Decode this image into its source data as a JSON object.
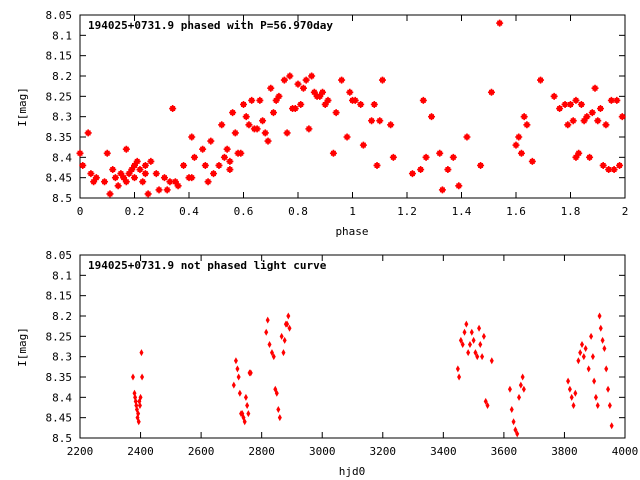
{
  "chart_data": [
    {
      "type": "scatter",
      "title": "194025+0731.9 phased with P=56.970day",
      "xlabel": "phase",
      "ylabel": "I[mag]",
      "xlim": [
        0,
        2
      ],
      "ylim": [
        8.05,
        8.5
      ],
      "y_inverted": true,
      "x_ticks": [
        "0",
        "0.2",
        "0.4",
        "0.6",
        "0.8",
        "1",
        "1.2",
        "1.4",
        "1.6",
        "1.8",
        "2"
      ],
      "x_tick_values": [
        0,
        0.2,
        0.4,
        0.6,
        0.8,
        1.0,
        1.2,
        1.4,
        1.6,
        1.8,
        2.0
      ],
      "y_ticks": [
        "8.05",
        "8.1",
        "8.15",
        "8.2",
        "8.25",
        "8.3",
        "8.35",
        "8.4",
        "8.45",
        "8.5"
      ],
      "y_tick_values": [
        8.05,
        8.1,
        8.15,
        8.2,
        8.25,
        8.3,
        8.35,
        8.4,
        8.45,
        8.5
      ],
      "marker_color": "#ff0000",
      "grid": false,
      "series": [
        {
          "points": [
            [
              0.0,
              8.39
            ],
            [
              0.01,
              8.42
            ],
            [
              0.03,
              8.34
            ],
            [
              0.04,
              8.44
            ],
            [
              0.05,
              8.46
            ],
            [
              0.06,
              8.45
            ],
            [
              0.09,
              8.46
            ],
            [
              0.1,
              8.39
            ],
            [
              0.11,
              8.49
            ],
            [
              0.12,
              8.43
            ],
            [
              0.13,
              8.45
            ],
            [
              0.14,
              8.47
            ],
            [
              0.15,
              8.44
            ],
            [
              0.16,
              8.45
            ],
            [
              0.17,
              8.46
            ],
            [
              0.17,
              8.38
            ],
            [
              0.18,
              8.44
            ],
            [
              0.19,
              8.43
            ],
            [
              0.2,
              8.42
            ],
            [
              0.2,
              8.45
            ],
            [
              0.21,
              8.41
            ],
            [
              0.22,
              8.43
            ],
            [
              0.23,
              8.46
            ],
            [
              0.24,
              8.44
            ],
            [
              0.24,
              8.42
            ],
            [
              0.25,
              8.49
            ],
            [
              0.26,
              8.41
            ],
            [
              0.28,
              8.44
            ],
            [
              0.29,
              8.48
            ],
            [
              0.31,
              8.45
            ],
            [
              0.32,
              8.48
            ],
            [
              0.33,
              8.46
            ],
            [
              0.34,
              8.28
            ],
            [
              0.35,
              8.46
            ],
            [
              0.36,
              8.47
            ],
            [
              0.38,
              8.42
            ],
            [
              0.4,
              8.45
            ],
            [
              0.41,
              8.45
            ],
            [
              0.41,
              8.35
            ],
            [
              0.42,
              8.4
            ],
            [
              0.45,
              8.38
            ],
            [
              0.46,
              8.42
            ],
            [
              0.47,
              8.46
            ],
            [
              0.48,
              8.36
            ],
            [
              0.49,
              8.44
            ],
            [
              0.51,
              8.42
            ],
            [
              0.52,
              8.32
            ],
            [
              0.53,
              8.4
            ],
            [
              0.54,
              8.38
            ],
            [
              0.55,
              8.41
            ],
            [
              0.55,
              8.43
            ],
            [
              0.56,
              8.29
            ],
            [
              0.57,
              8.34
            ],
            [
              0.58,
              8.39
            ],
            [
              0.59,
              8.39
            ],
            [
              0.6,
              8.27
            ],
            [
              0.61,
              8.3
            ],
            [
              0.62,
              8.32
            ],
            [
              0.63,
              8.26
            ],
            [
              0.64,
              8.33
            ],
            [
              0.65,
              8.33
            ],
            [
              0.66,
              8.26
            ],
            [
              0.67,
              8.31
            ],
            [
              0.68,
              8.34
            ],
            [
              0.69,
              8.36
            ],
            [
              0.7,
              8.23
            ],
            [
              0.71,
              8.29
            ],
            [
              0.72,
              8.26
            ],
            [
              0.73,
              8.25
            ],
            [
              0.75,
              8.21
            ],
            [
              0.76,
              8.34
            ],
            [
              0.77,
              8.2
            ],
            [
              0.78,
              8.28
            ],
            [
              0.79,
              8.28
            ],
            [
              0.8,
              8.22
            ],
            [
              0.81,
              8.27
            ],
            [
              0.82,
              8.23
            ],
            [
              0.83,
              8.21
            ],
            [
              0.84,
              8.33
            ],
            [
              0.85,
              8.2
            ],
            [
              0.86,
              8.24
            ],
            [
              0.87,
              8.25
            ],
            [
              0.88,
              8.25
            ],
            [
              0.89,
              8.24
            ],
            [
              0.9,
              8.27
            ],
            [
              0.91,
              8.26
            ],
            [
              0.93,
              8.39
            ],
            [
              0.94,
              8.29
            ],
            [
              0.96,
              8.21
            ],
            [
              0.98,
              8.35
            ],
            [
              0.99,
              8.24
            ],
            [
              1.0,
              8.26
            ],
            [
              1.01,
              8.26
            ],
            [
              1.03,
              8.27
            ],
            [
              1.04,
              8.37
            ],
            [
              1.07,
              8.31
            ],
            [
              1.08,
              8.27
            ],
            [
              1.09,
              8.42
            ],
            [
              1.1,
              8.31
            ],
            [
              1.11,
              8.21
            ],
            [
              1.14,
              8.32
            ],
            [
              1.15,
              8.4
            ],
            [
              1.22,
              8.44
            ],
            [
              1.25,
              8.43
            ],
            [
              1.26,
              8.26
            ],
            [
              1.27,
              8.4
            ],
            [
              1.29,
              8.3
            ],
            [
              1.32,
              8.39
            ],
            [
              1.33,
              8.48
            ],
            [
              1.35,
              8.43
            ],
            [
              1.37,
              8.4
            ],
            [
              1.39,
              8.47
            ],
            [
              1.42,
              8.35
            ],
            [
              1.47,
              8.42
            ],
            [
              1.51,
              8.24
            ],
            [
              1.54,
              8.07
            ],
            [
              1.6,
              8.37
            ],
            [
              1.61,
              8.35
            ],
            [
              1.62,
              8.39
            ],
            [
              1.63,
              8.3
            ],
            [
              1.64,
              8.32
            ],
            [
              1.66,
              8.41
            ],
            [
              1.69,
              8.21
            ],
            [
              1.74,
              8.25
            ],
            [
              1.76,
              8.28
            ],
            [
              1.78,
              8.27
            ],
            [
              1.79,
              8.32
            ],
            [
              1.8,
              8.27
            ],
            [
              1.81,
              8.31
            ],
            [
              1.82,
              8.4
            ],
            [
              1.82,
              8.26
            ],
            [
              1.83,
              8.39
            ],
            [
              1.84,
              8.27
            ],
            [
              1.85,
              8.31
            ],
            [
              1.86,
              8.3
            ],
            [
              1.87,
              8.4
            ],
            [
              1.88,
              8.29
            ],
            [
              1.89,
              8.23
            ],
            [
              1.9,
              8.31
            ],
            [
              1.91,
              8.28
            ],
            [
              1.92,
              8.42
            ],
            [
              1.93,
              8.32
            ],
            [
              1.94,
              8.43
            ],
            [
              1.95,
              8.26
            ],
            [
              1.96,
              8.43
            ],
            [
              1.97,
              8.26
            ],
            [
              1.98,
              8.42
            ],
            [
              1.99,
              8.3
            ]
          ]
        }
      ]
    },
    {
      "type": "scatter",
      "title": "194025+0731.9 not phased light curve",
      "xlabel": "hjd0",
      "ylabel": "I[mag]",
      "xlim": [
        2200,
        4000
      ],
      "ylim": [
        8.05,
        8.5
      ],
      "y_inverted": true,
      "x_ticks": [
        "2200",
        "2400",
        "2600",
        "2800",
        "3000",
        "3200",
        "3400",
        "3600",
        "3800",
        "4000"
      ],
      "x_tick_values": [
        2200,
        2400,
        2600,
        2800,
        3000,
        3200,
        3400,
        3600,
        3800,
        4000
      ],
      "y_ticks": [
        "8.05",
        "8.1",
        "8.15",
        "8.2",
        "8.25",
        "8.3",
        "8.35",
        "8.4",
        "8.45",
        "8.5"
      ],
      "y_tick_values": [
        8.05,
        8.1,
        8.15,
        8.2,
        8.25,
        8.3,
        8.35,
        8.4,
        8.45,
        8.5
      ],
      "marker_color": "#ff0000",
      "grid": false,
      "series": [
        {
          "points": [
            [
              2375,
              8.35
            ],
            [
              2380,
              8.39
            ],
            [
              2382,
              8.4
            ],
            [
              2384,
              8.41
            ],
            [
              2386,
              8.42
            ],
            [
              2388,
              8.43
            ],
            [
              2390,
              8.45
            ],
            [
              2392,
              8.44
            ],
            [
              2394,
              8.46
            ],
            [
              2396,
              8.41
            ],
            [
              2398,
              8.42
            ],
            [
              2400,
              8.4
            ],
            [
              2403,
              8.29
            ],
            [
              2405,
              8.35
            ],
            [
              2708,
              8.37
            ],
            [
              2715,
              8.31
            ],
            [
              2720,
              8.33
            ],
            [
              2724,
              8.35
            ],
            [
              2728,
              8.39
            ],
            [
              2732,
              8.44
            ],
            [
              2736,
              8.44
            ],
            [
              2740,
              8.45
            ],
            [
              2744,
              8.46
            ],
            [
              2748,
              8.4
            ],
            [
              2752,
              8.42
            ],
            [
              2756,
              8.44
            ],
            [
              2760,
              8.34
            ],
            [
              2764,
              8.34
            ],
            [
              2815,
              8.24
            ],
            [
              2820,
              8.21
            ],
            [
              2826,
              8.27
            ],
            [
              2834,
              8.29
            ],
            [
              2840,
              8.3
            ],
            [
              2845,
              8.38
            ],
            [
              2850,
              8.39
            ],
            [
              2855,
              8.43
            ],
            [
              2860,
              8.45
            ],
            [
              2866,
              8.25
            ],
            [
              2872,
              8.29
            ],
            [
              2876,
              8.26
            ],
            [
              2880,
              8.22
            ],
            [
              2884,
              8.22
            ],
            [
              2888,
              8.2
            ],
            [
              2892,
              8.23
            ],
            [
              3448,
              8.33
            ],
            [
              3452,
              8.35
            ],
            [
              3458,
              8.26
            ],
            [
              3464,
              8.27
            ],
            [
              3470,
              8.24
            ],
            [
              3476,
              8.22
            ],
            [
              3482,
              8.29
            ],
            [
              3488,
              8.27
            ],
            [
              3494,
              8.24
            ],
            [
              3500,
              8.26
            ],
            [
              3506,
              8.29
            ],
            [
              3512,
              8.3
            ],
            [
              3518,
              8.23
            ],
            [
              3522,
              8.27
            ],
            [
              3528,
              8.3
            ],
            [
              3534,
              8.25
            ],
            [
              3540,
              8.41
            ],
            [
              3546,
              8.42
            ],
            [
              3560,
              8.31
            ],
            [
              3620,
              8.38
            ],
            [
              3626,
              8.43
            ],
            [
              3632,
              8.46
            ],
            [
              3638,
              8.48
            ],
            [
              3644,
              8.49
            ],
            [
              3650,
              8.4
            ],
            [
              3656,
              8.37
            ],
            [
              3662,
              8.35
            ],
            [
              3666,
              8.38
            ],
            [
              3812,
              8.36
            ],
            [
              3818,
              8.38
            ],
            [
              3824,
              8.4
            ],
            [
              3830,
              8.42
            ],
            [
              3836,
              8.39
            ],
            [
              3846,
              8.31
            ],
            [
              3852,
              8.29
            ],
            [
              3858,
              8.27
            ],
            [
              3864,
              8.3
            ],
            [
              3870,
              8.28
            ],
            [
              3880,
              8.33
            ],
            [
              3888,
              8.25
            ],
            [
              3894,
              8.3
            ],
            [
              3898,
              8.36
            ],
            [
              3904,
              8.4
            ],
            [
              3910,
              8.42
            ],
            [
              3916,
              8.2
            ],
            [
              3920,
              8.23
            ],
            [
              3926,
              8.26
            ],
            [
              3932,
              8.28
            ],
            [
              3938,
              8.33
            ],
            [
              3944,
              8.38
            ],
            [
              3950,
              8.42
            ],
            [
              3956,
              8.47
            ]
          ]
        }
      ]
    }
  ]
}
